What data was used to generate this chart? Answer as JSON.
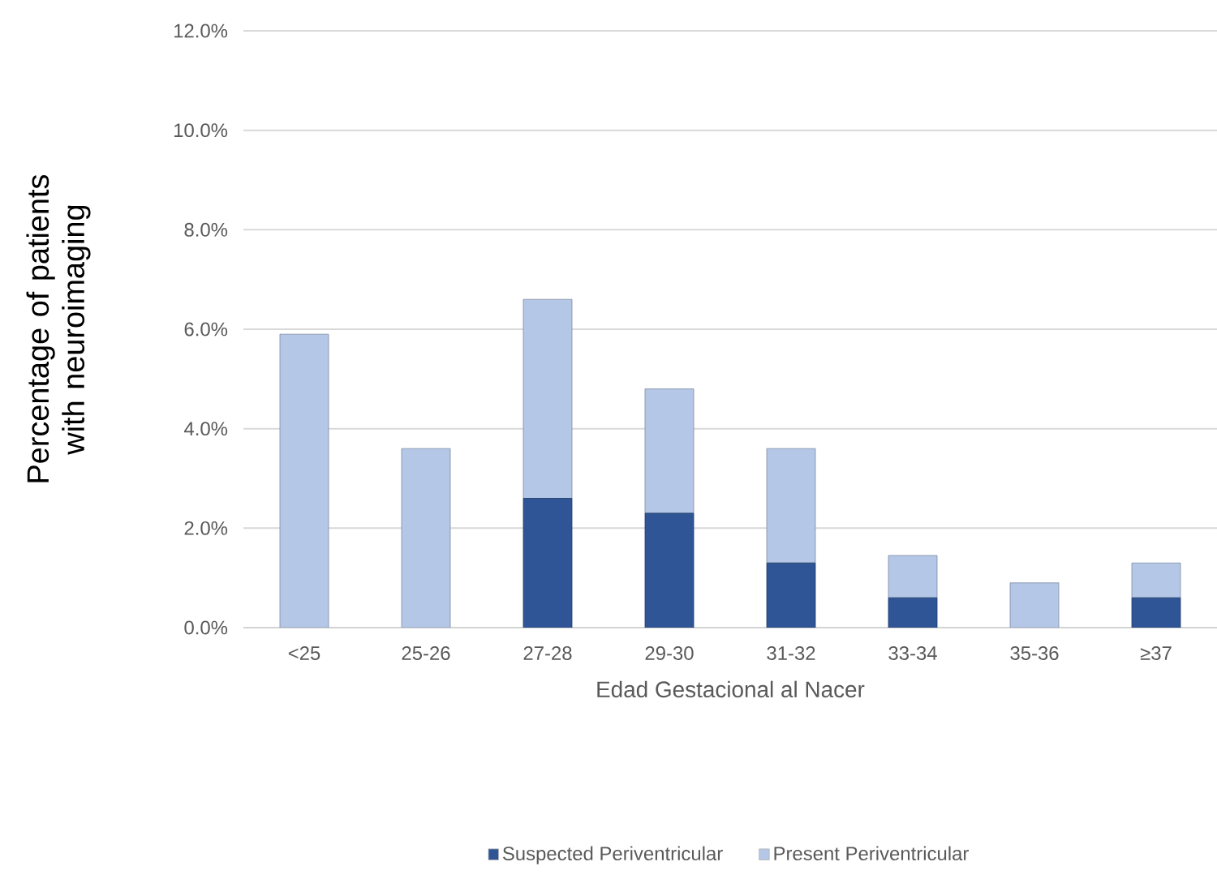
{
  "chart_data": {
    "type": "bar",
    "stacked": true,
    "xlabel": "Edad Gestacional al Nacer",
    "ylabel": "Percentage of patients with neuroimaging",
    "categories": [
      "<25",
      "25-26",
      "27-28",
      "29-30",
      "31-32",
      "33-34",
      "35-36",
      "≥37"
    ],
    "series": [
      {
        "name": "Suspected Periventricular",
        "color": "#2f5597",
        "values": [
          0,
          0,
          2.6,
          2.3,
          1.3,
          0.6,
          0,
          0.6
        ]
      },
      {
        "name": "Present Periventricular",
        "color": "#b4c7e7",
        "values": [
          5.9,
          3.6,
          4.0,
          2.5,
          2.3,
          0.85,
          0.9,
          0.7
        ]
      }
    ],
    "ylim": [
      0,
      12
    ],
    "yticks": [
      {
        "value": 0,
        "label": "0.0%"
      },
      {
        "value": 2,
        "label": "2.0%"
      },
      {
        "value": 4,
        "label": "4.0%"
      },
      {
        "value": 6,
        "label": "6.0%"
      },
      {
        "value": 8,
        "label": "8.0%"
      },
      {
        "value": 10,
        "label": "10.0%"
      },
      {
        "value": 12,
        "label": "12.0%"
      }
    ],
    "grid": "y",
    "legend": "bottom"
  }
}
